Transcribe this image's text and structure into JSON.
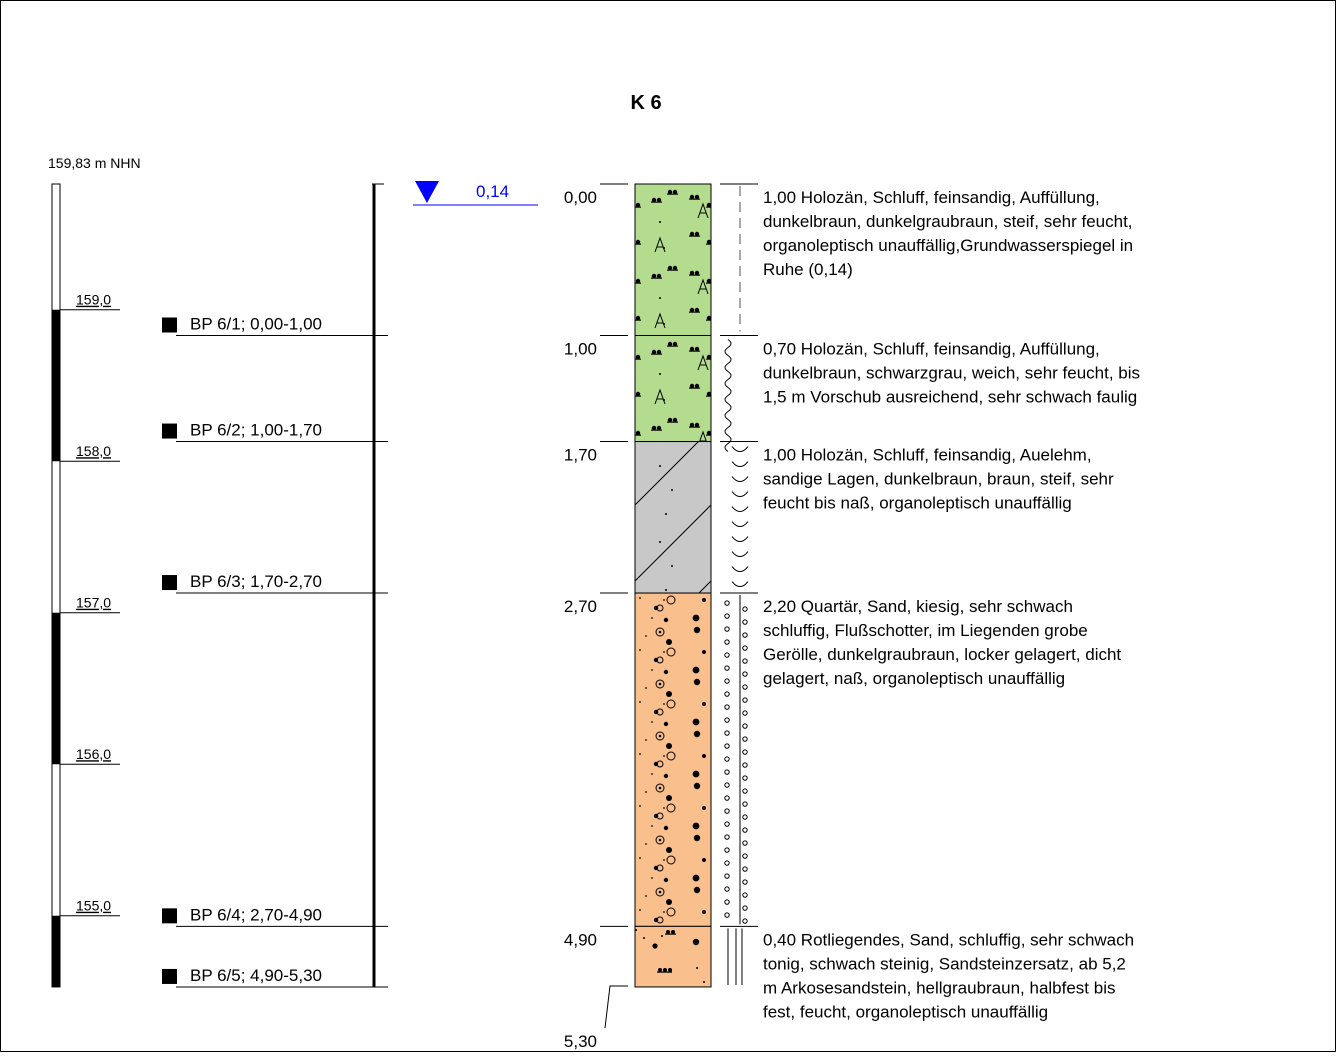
{
  "title": "K 6",
  "elevation_label": "159,83 m NHN",
  "elevation_ticks": [
    "159,0",
    "158,0",
    "157,0",
    "156,0",
    "155,0"
  ],
  "groundwater": {
    "depth_label": "0,14",
    "depth_m": 0.14,
    "color": "#0000ff"
  },
  "samples": [
    {
      "label": "BP 6/1; 0,00-1,00",
      "from_m": 0.0,
      "to_m": 1.0
    },
    {
      "label": "BP 6/2; 1,00-1,70",
      "from_m": 1.0,
      "to_m": 1.7
    },
    {
      "label": "BP 6/3; 1,70-2,70",
      "from_m": 1.7,
      "to_m": 2.7
    },
    {
      "label": "BP 6/4; 2,70-4,90",
      "from_m": 2.7,
      "to_m": 4.9
    },
    {
      "label": "BP 6/5; 4,90-5,30",
      "from_m": 4.9,
      "to_m": 5.3
    }
  ],
  "depth_labels": [
    "0,00",
    "1,00",
    "1,70",
    "2,70",
    "4,90",
    "5,30"
  ],
  "layers": [
    {
      "top_m": 0.0,
      "bottom_m": 1.0,
      "fill": "#b3dc8f",
      "pattern": "fill",
      "consistency": "steif",
      "description": [
        "1,00  Holozän, Schluff, feinsandig, Auffüllung,",
        "dunkelbraun, dunkelgraubraun, steif, sehr feucht,",
        "organoleptisch unauffällig,Grundwasserspiegel in",
        "Ruhe (0,14)"
      ]
    },
    {
      "top_m": 1.0,
      "bottom_m": 1.7,
      "fill": "#b3dc8f",
      "pattern": "fill",
      "consistency": "weich",
      "description": [
        "0,70  Holozän, Schluff, feinsandig, Auffüllung,",
        "dunkelbraun, schwarzgrau, weich, sehr feucht, bis",
        "1,5 m Vorschub ausreichend, sehr schwach faulig"
      ]
    },
    {
      "top_m": 1.7,
      "bottom_m": 2.7,
      "fill": "#c8c8c8",
      "pattern": "loam",
      "consistency": "steif",
      "description": [
        "1,00  Holozän, Schluff, feinsandig, Auelehm,",
        "sandige Lagen, dunkelbraun, braun, steif, sehr",
        "feucht bis naß, organoleptisch unauffällig"
      ]
    },
    {
      "top_m": 2.7,
      "bottom_m": 4.9,
      "fill": "#f9c08e",
      "pattern": "gravel",
      "consistency": "locker / dicht gelagert",
      "description": [
        "2,20  Quartär, Sand, kiesig, sehr schwach",
        "schluffig, Flußschotter, im Liegenden grobe",
        "Gerölle, dunkelgraubraun, locker gelagert, dicht",
        "gelagert, naß, organoleptisch unauffällig"
      ]
    },
    {
      "top_m": 4.9,
      "bottom_m": 5.3,
      "fill": "#f9c08e",
      "pattern": "sandstone",
      "consistency": "halbfest bis fest",
      "description": [
        "0,40  Rotliegendes, Sand, schluffig, sehr schwach",
        "tonig, schwach steinig, Sandsteinzersatz, ab 5,2",
        "m Arkosesandstein, hellgraubraun, halbfest bis",
        "fest, feucht, organoleptisch unauffällig"
      ]
    }
  ]
}
